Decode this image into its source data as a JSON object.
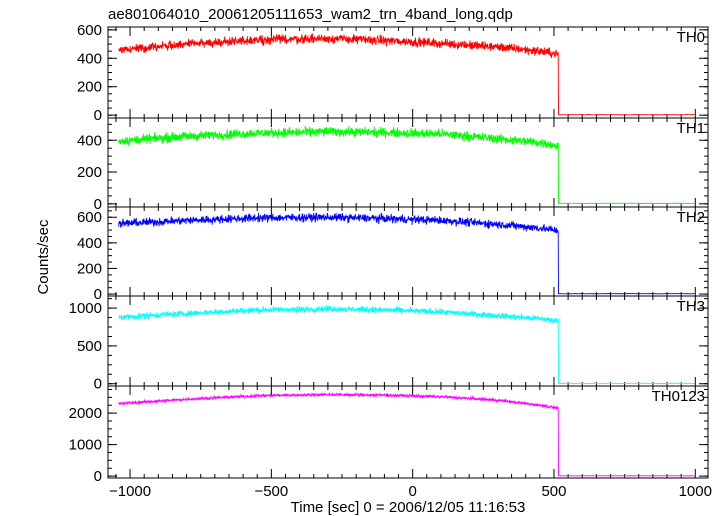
{
  "title": "ae801064010_20061205111653_wam2_trn_4band_long.qdp",
  "xlabel": "Time [sec] 0 = 2006/12/05 11:16:53",
  "ylabel": "Counts/sec",
  "x_ticks": [
    "−1000",
    "−500",
    "0",
    "500",
    "1000"
  ],
  "chart_data": [
    {
      "type": "line",
      "series": [
        {
          "name": "TH0",
          "color": "#ff0000"
        }
      ],
      "xlim": [
        -1078,
        1045
      ],
      "ylim": [
        -20,
        620
      ],
      "y_ticks": [
        0,
        200,
        400,
        600
      ],
      "profile": {
        "x": [
          -1040,
          -800,
          -550,
          -300,
          -100,
          100,
          300,
          450,
          515
        ],
        "y": [
          460,
          500,
          530,
          540,
          525,
          505,
          480,
          450,
          430
        ]
      },
      "noise": 24,
      "drop_x": 515,
      "end_x": 1000,
      "base_y": 3
    },
    {
      "type": "line",
      "series": [
        {
          "name": "TH1",
          "color": "#00ff00"
        }
      ],
      "xlim": [
        -1078,
        1045
      ],
      "ylim": [
        -20,
        540
      ],
      "y_ticks": [
        0,
        200,
        400
      ],
      "profile": {
        "x": [
          -1040,
          -800,
          -550,
          -300,
          -100,
          100,
          300,
          450,
          515
        ],
        "y": [
          395,
          425,
          445,
          455,
          450,
          440,
          410,
          385,
          365
        ]
      },
      "noise": 22,
      "drop_x": 515,
      "end_x": 1000,
      "base_y": 3
    },
    {
      "type": "line",
      "series": [
        {
          "name": "TH2",
          "color": "#0000ff"
        }
      ],
      "xlim": [
        -1078,
        1045
      ],
      "ylim": [
        -15,
        680
      ],
      "y_ticks": [
        0,
        200,
        400,
        600
      ],
      "profile": {
        "x": [
          -1040,
          -800,
          -550,
          -300,
          -100,
          100,
          300,
          450,
          515
        ],
        "y": [
          550,
          575,
          595,
          600,
          590,
          575,
          545,
          515,
          495
        ]
      },
      "noise": 24,
      "drop_x": 515,
      "end_x": 1000,
      "base_y": 3
    },
    {
      "type": "line",
      "series": [
        {
          "name": "TH3",
          "color": "#00ffff"
        }
      ],
      "xlim": [
        -1078,
        1045
      ],
      "ylim": [
        -30,
        1160
      ],
      "y_ticks": [
        0,
        500,
        1000
      ],
      "profile": {
        "x": [
          -1040,
          -800,
          -550,
          -300,
          -100,
          100,
          300,
          450,
          515
        ],
        "y": [
          880,
          930,
          975,
          990,
          975,
          950,
          900,
          860,
          830
        ]
      },
      "noise": 30,
      "drop_x": 515,
      "end_x": 1000,
      "base_y": 5
    },
    {
      "type": "line",
      "series": [
        {
          "name": "TH0123",
          "color": "#ff00ff"
        }
      ],
      "xlim": [
        -1078,
        1045
      ],
      "ylim": [
        -60,
        2860
      ],
      "y_ticks": [
        0,
        1000,
        2000
      ],
      "profile": {
        "x": [
          -1040,
          -800,
          -550,
          -300,
          -100,
          100,
          300,
          450,
          515
        ],
        "y": [
          2300,
          2440,
          2550,
          2590,
          2570,
          2520,
          2410,
          2250,
          2160
        ]
      },
      "noise": 35,
      "drop_x": 515,
      "end_x": 1000,
      "base_y": 10
    }
  ]
}
